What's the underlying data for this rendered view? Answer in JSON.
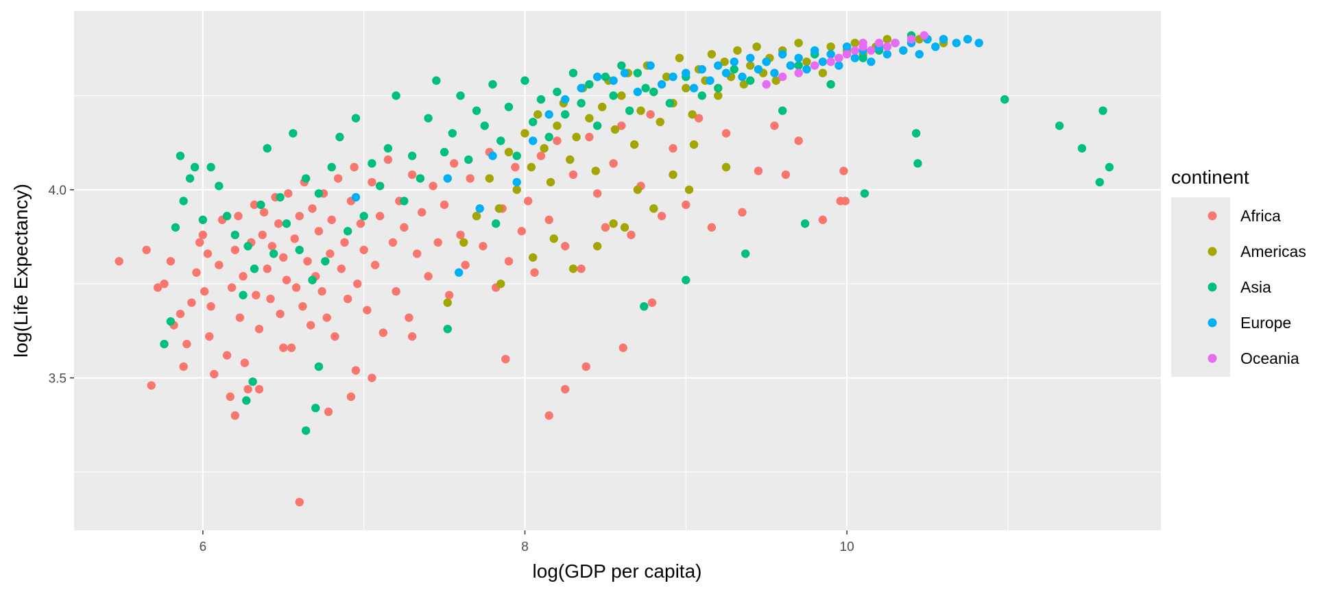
{
  "chart_data": {
    "type": "scatter",
    "xlabel": "log(GDP per capita)",
    "ylabel": "log(Life Expectancy)",
    "xlim": [
      5.2,
      11.95
    ],
    "ylim": [
      3.095,
      4.475
    ],
    "x_major_ticks": [
      6,
      8,
      10
    ],
    "x_tick_labels": [
      "6",
      "8",
      "10"
    ],
    "x_minor_ticks": [
      7,
      9,
      11
    ],
    "y_major_ticks": [
      3.5,
      4.0
    ],
    "y_tick_labels": [
      "3.5",
      "4.0"
    ],
    "y_minor_ticks": [
      3.25,
      3.75,
      4.25
    ],
    "grid": true,
    "legend": {
      "title": "continent",
      "position": "right"
    },
    "series": [
      {
        "name": "Africa",
        "color": "#F8766D",
        "x": [
          5.48,
          5.65,
          5.68,
          5.72,
          5.76,
          5.8,
          5.82,
          5.86,
          5.88,
          5.9,
          5.93,
          5.96,
          5.98,
          6.0,
          6.01,
          6.03,
          6.04,
          6.05,
          6.07,
          6.1,
          6.12,
          6.15,
          6.17,
          6.18,
          6.2,
          6.22,
          6.23,
          6.25,
          6.26,
          6.28,
          6.3,
          6.32,
          6.33,
          6.35,
          6.37,
          6.38,
          6.4,
          6.42,
          6.43,
          6.45,
          6.47,
          6.48,
          6.5,
          6.52,
          6.53,
          6.55,
          6.57,
          6.58,
          6.6,
          6.62,
          6.63,
          6.65,
          6.67,
          6.68,
          6.7,
          6.72,
          6.74,
          6.75,
          6.77,
          6.79,
          6.8,
          6.82,
          6.84,
          6.86,
          6.88,
          6.9,
          6.92,
          6.94,
          6.96,
          6.98,
          7.0,
          7.02,
          7.05,
          7.07,
          7.1,
          7.12,
          7.15,
          7.18,
          7.2,
          7.22,
          7.25,
          7.28,
          7.3,
          7.33,
          7.36,
          7.4,
          7.43,
          7.46,
          7.5,
          7.53,
          7.56,
          7.6,
          7.63,
          7.66,
          7.7,
          7.74,
          7.78,
          7.82,
          7.86,
          7.9,
          7.94,
          7.98,
          8.02,
          8.06,
          8.1,
          8.15,
          8.2,
          8.25,
          8.3,
          8.35,
          8.4,
          8.45,
          8.5,
          8.55,
          8.6,
          8.66,
          8.72,
          8.78,
          8.85,
          8.92,
          9.0,
          9.08,
          9.16,
          9.25,
          9.35,
          9.45,
          9.55,
          9.7,
          9.85,
          9.98,
          6.6,
          6.2,
          6.78,
          6.92,
          7.05,
          8.15,
          8.25,
          8.38,
          8.61,
          8.79,
          7.88,
          6.35,
          6.5,
          6.95,
          7.3,
          9.62,
          9.99,
          9.96
        ],
        "y": [
          3.81,
          3.84,
          3.48,
          3.74,
          3.75,
          3.81,
          3.64,
          3.67,
          3.53,
          3.59,
          3.7,
          3.78,
          3.86,
          3.88,
          3.73,
          3.83,
          3.61,
          3.69,
          3.51,
          3.8,
          3.92,
          3.56,
          3.45,
          3.74,
          3.84,
          3.93,
          3.66,
          3.77,
          3.54,
          3.47,
          3.86,
          3.96,
          3.72,
          3.63,
          3.88,
          3.94,
          3.79,
          3.71,
          3.85,
          3.98,
          3.91,
          3.67,
          3.82,
          3.76,
          3.99,
          3.58,
          3.87,
          3.74,
          3.93,
          3.69,
          4.02,
          3.81,
          3.64,
          3.95,
          3.77,
          3.89,
          3.73,
          3.99,
          3.66,
          3.83,
          3.92,
          3.61,
          4.03,
          3.79,
          3.86,
          3.71,
          3.97,
          4.06,
          3.75,
          3.91,
          3.84,
          3.68,
          4.02,
          3.8,
          3.93,
          3.62,
          4.08,
          3.86,
          3.73,
          3.97,
          3.9,
          3.66,
          4.04,
          3.83,
          3.94,
          3.77,
          4.01,
          3.86,
          3.96,
          3.72,
          4.07,
          3.88,
          3.8,
          4.03,
          3.93,
          3.85,
          4.1,
          3.74,
          3.95,
          3.81,
          4.06,
          3.89,
          3.97,
          3.78,
          4.09,
          3.92,
          4.13,
          3.85,
          4.04,
          3.79,
          4.14,
          3.99,
          3.9,
          4.07,
          4.17,
          3.88,
          4.01,
          4.2,
          3.93,
          4.11,
          3.96,
          4.19,
          3.9,
          4.15,
          3.94,
          4.05,
          4.17,
          4.13,
          3.92,
          4.05,
          3.17,
          3.4,
          3.41,
          3.45,
          3.5,
          3.4,
          3.47,
          3.53,
          3.58,
          3.7,
          3.55,
          3.47,
          3.58,
          3.52,
          3.61,
          4.04,
          3.97,
          3.97
        ]
      },
      {
        "name": "Americas",
        "color": "#A3A500",
        "x": [
          7.52,
          7.62,
          7.7,
          7.78,
          7.84,
          7.9,
          7.95,
          8.0,
          8.04,
          8.08,
          8.12,
          8.16,
          8.2,
          8.24,
          8.28,
          8.32,
          8.36,
          8.4,
          8.44,
          8.48,
          8.52,
          8.56,
          8.6,
          8.64,
          8.68,
          8.72,
          8.76,
          8.8,
          8.84,
          8.88,
          8.92,
          8.96,
          9.0,
          9.04,
          9.08,
          9.12,
          9.16,
          9.2,
          9.24,
          9.28,
          9.32,
          9.36,
          9.4,
          9.44,
          9.48,
          9.52,
          9.56,
          9.6,
          9.65,
          9.7,
          9.75,
          9.8,
          9.85,
          9.9,
          9.95,
          10.0,
          10.05,
          10.1,
          10.18,
          10.25,
          10.35,
          10.45,
          10.6,
          8.05,
          8.18,
          8.3,
          8.45,
          8.62,
          8.8,
          9.02,
          7.85,
          8.92,
          8.55,
          9.25,
          8.7,
          9.05
        ],
        "y": [
          3.7,
          3.86,
          3.93,
          4.03,
          3.95,
          4.1,
          4.0,
          4.15,
          4.06,
          4.2,
          4.11,
          4.02,
          4.17,
          4.23,
          4.08,
          4.14,
          4.27,
          4.19,
          4.05,
          4.22,
          4.29,
          4.16,
          4.25,
          4.31,
          4.12,
          4.21,
          4.33,
          4.26,
          4.18,
          4.3,
          4.23,
          4.35,
          4.27,
          4.2,
          4.32,
          4.29,
          4.36,
          4.25,
          4.34,
          4.3,
          4.37,
          4.28,
          4.33,
          4.38,
          4.31,
          4.35,
          4.29,
          4.37,
          4.33,
          4.39,
          4.34,
          4.36,
          4.31,
          4.38,
          4.35,
          4.37,
          4.39,
          4.36,
          4.38,
          4.4,
          4.37,
          4.4,
          4.39,
          3.82,
          3.87,
          3.79,
          3.85,
          3.9,
          3.95,
          4.0,
          3.75,
          4.04,
          3.91,
          4.06,
          4.0,
          4.12
        ]
      },
      {
        "name": "Asia",
        "color": "#00BF7D",
        "x": [
          5.76,
          5.8,
          5.83,
          5.86,
          5.88,
          5.92,
          5.95,
          6.0,
          6.05,
          6.1,
          6.15,
          6.2,
          6.25,
          6.28,
          6.32,
          6.36,
          6.4,
          6.44,
          6.48,
          6.52,
          6.56,
          6.6,
          6.64,
          6.68,
          6.72,
          6.76,
          6.8,
          6.85,
          6.9,
          6.95,
          7.0,
          7.05,
          7.1,
          7.15,
          7.2,
          7.25,
          7.3,
          7.35,
          7.4,
          7.45,
          7.5,
          7.55,
          7.6,
          7.65,
          7.7,
          7.75,
          7.8,
          7.85,
          7.9,
          7.95,
          8.0,
          8.05,
          8.1,
          8.15,
          8.2,
          8.25,
          8.3,
          8.35,
          8.4,
          8.45,
          8.5,
          8.55,
          8.6,
          8.65,
          8.7,
          8.75,
          8.8,
          8.9,
          9.0,
          9.1,
          9.2,
          9.3,
          9.4,
          9.5,
          9.6,
          9.7,
          9.8,
          9.9,
          10.0,
          10.1,
          10.2,
          10.3,
          10.4,
          10.5,
          10.6,
          10.75,
          10.98,
          11.32,
          11.46,
          11.59,
          11.63,
          11.57,
          10.43,
          10.44,
          10.11,
          6.64,
          6.7,
          6.72,
          6.27,
          6.31,
          9.0,
          9.37,
          9.74,
          8.74,
          7.52,
          7.82
        ],
        "y": [
          3.59,
          3.65,
          3.9,
          4.09,
          3.97,
          4.03,
          4.06,
          3.92,
          4.06,
          4.01,
          3.93,
          3.88,
          3.72,
          3.85,
          3.79,
          3.96,
          4.11,
          3.83,
          3.98,
          3.91,
          4.15,
          3.84,
          4.03,
          3.76,
          3.99,
          3.81,
          4.06,
          4.14,
          3.89,
          4.19,
          3.93,
          4.07,
          4.01,
          4.11,
          4.25,
          3.97,
          4.09,
          4.03,
          4.19,
          4.29,
          4.1,
          4.15,
          4.25,
          4.08,
          4.21,
          4.17,
          4.28,
          4.13,
          4.22,
          4.09,
          4.29,
          4.18,
          4.24,
          4.14,
          4.26,
          4.2,
          4.31,
          4.23,
          4.28,
          4.17,
          4.3,
          4.25,
          4.33,
          4.21,
          4.31,
          4.27,
          4.26,
          4.23,
          4.3,
          4.25,
          4.27,
          4.32,
          4.29,
          4.34,
          4.21,
          4.33,
          4.36,
          4.28,
          4.38,
          4.35,
          4.37,
          4.39,
          4.41,
          4.4,
          4.4,
          4.4,
          4.24,
          4.17,
          4.11,
          4.21,
          4.06,
          4.02,
          4.15,
          4.07,
          3.99,
          3.36,
          3.42,
          3.53,
          3.44,
          3.49,
          3.76,
          3.83,
          3.91,
          3.69,
          3.63,
          3.91
        ]
      },
      {
        "name": "Europe",
        "color": "#00B0F6",
        "x": [
          7.59,
          7.72,
          7.95,
          8.05,
          8.15,
          8.25,
          8.35,
          8.45,
          8.55,
          8.62,
          8.7,
          8.78,
          8.85,
          8.92,
          9.0,
          9.05,
          9.1,
          9.15,
          9.2,
          9.25,
          9.3,
          9.35,
          9.4,
          9.45,
          9.5,
          9.55,
          9.6,
          9.65,
          9.7,
          9.75,
          9.8,
          9.85,
          9.9,
          9.95,
          10.0,
          10.05,
          10.1,
          10.15,
          10.2,
          10.25,
          10.3,
          10.35,
          10.4,
          10.45,
          10.5,
          10.55,
          10.6,
          10.68,
          10.75,
          10.82,
          6.95,
          7.52,
          7.8
        ],
        "y": [
          3.78,
          3.95,
          4.02,
          4.13,
          4.2,
          4.24,
          4.27,
          4.3,
          4.29,
          4.31,
          4.26,
          4.33,
          4.28,
          4.3,
          4.31,
          4.27,
          4.32,
          4.29,
          4.33,
          4.31,
          4.34,
          4.3,
          4.35,
          4.32,
          4.34,
          4.31,
          4.36,
          4.33,
          4.35,
          4.32,
          4.37,
          4.34,
          4.36,
          4.33,
          4.38,
          4.35,
          4.37,
          4.34,
          4.38,
          4.36,
          4.39,
          4.37,
          4.39,
          4.36,
          4.4,
          4.38,
          4.4,
          4.39,
          4.4,
          4.39,
          3.98,
          4.03,
          4.09
        ]
      },
      {
        "name": "Oceania",
        "color": "#E76BF3",
        "x": [
          9.5,
          9.6,
          9.7,
          9.8,
          9.9,
          9.95,
          10.0,
          10.05,
          10.1,
          10.15,
          10.2,
          10.25,
          10.3,
          10.4,
          10.48,
          10.1
        ],
        "y": [
          4.28,
          4.3,
          4.31,
          4.33,
          4.34,
          4.35,
          4.36,
          4.37,
          4.38,
          4.37,
          4.39,
          4.38,
          4.39,
          4.4,
          4.41,
          4.39
        ]
      }
    ]
  }
}
